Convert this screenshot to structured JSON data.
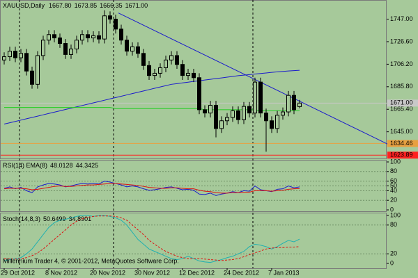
{
  "chart_data": [
    {
      "type": "candlestick",
      "title": "XAUUSD,Daily",
      "header_labels": [
        "1667.80",
        "1673.85",
        "1666.35",
        "1671.00"
      ],
      "categories": [
        "29 Oct 2012",
        null,
        null,
        null,
        null,
        null,
        null,
        null,
        "8 Nov 2012",
        null,
        null,
        null,
        null,
        null,
        null,
        null,
        "20 Nov 2012",
        null,
        null,
        null,
        null,
        null,
        null,
        null,
        "30 Nov 2012",
        null,
        null,
        null,
        null,
        null,
        null,
        null,
        "12 Dec 2012",
        null,
        null,
        null,
        null,
        null,
        null,
        null,
        "24 Dec 2012",
        null,
        null,
        null,
        null,
        null,
        null,
        null,
        "7 Jan 2013",
        null,
        null,
        null,
        null,
        null
      ],
      "open": [
        1710,
        1713,
        1718,
        1712,
        1716,
        1700,
        1688,
        1714,
        1728,
        1733,
        1730,
        1725,
        1715,
        1720,
        1728,
        1733,
        1730,
        1732,
        1729,
        1750,
        1747,
        1738,
        1728,
        1718,
        1722,
        1716,
        1705,
        1696,
        1698,
        1703,
        1710,
        1714,
        1706,
        1696,
        1698,
        1694,
        1665,
        1662,
        1669,
        1648,
        1655,
        1658,
        1664,
        1656,
        1668,
        1662,
        1690,
        1662,
        1655,
        1648,
        1660,
        1663,
        1678,
        1667.8
      ],
      "high": [
        1717,
        1722,
        1722,
        1720,
        1720,
        1704,
        1718,
        1732,
        1737,
        1737,
        1734,
        1729,
        1724,
        1732,
        1737,
        1737,
        1736,
        1736,
        1755,
        1754,
        1751,
        1742,
        1732,
        1726,
        1726,
        1720,
        1709,
        1702,
        1707,
        1714,
        1718,
        1718,
        1710,
        1702,
        1702,
        1698,
        1669,
        1673,
        1673,
        1659,
        1662,
        1668,
        1668,
        1672,
        1672,
        1694,
        1694,
        1666,
        1659,
        1664,
        1667,
        1682,
        1682,
        1673.85
      ],
      "low": [
        1706,
        1709,
        1708,
        1708,
        1696,
        1684,
        1684,
        1710,
        1724,
        1726,
        1721,
        1711,
        1711,
        1716,
        1724,
        1726,
        1726,
        1725,
        1725,
        1743,
        1734,
        1724,
        1714,
        1714,
        1712,
        1701,
        1692,
        1692,
        1694,
        1699,
        1706,
        1702,
        1692,
        1692,
        1690,
        1661,
        1658,
        1658,
        1640,
        1644,
        1651,
        1654,
        1652,
        1652,
        1658,
        1658,
        1658,
        1627,
        1644,
        1644,
        1656,
        1659,
        1661,
        1666.35
      ],
      "close": [
        1713,
        1718,
        1712,
        1716,
        1700,
        1688,
        1714,
        1728,
        1733,
        1730,
        1725,
        1715,
        1720,
        1728,
        1733,
        1730,
        1732,
        1729,
        1750,
        1747,
        1738,
        1728,
        1718,
        1722,
        1716,
        1705,
        1696,
        1698,
        1703,
        1710,
        1714,
        1706,
        1696,
        1698,
        1694,
        1665,
        1662,
        1669,
        1648,
        1655,
        1658,
        1664,
        1656,
        1668,
        1662,
        1690,
        1662,
        1655,
        1648,
        1660,
        1663,
        1678,
        1665,
        1671
      ],
      "up_color": "#a6c99a",
      "down_color": "#000000",
      "lines": [
        {
          "color": "#1a1acc",
          "values": [
            1652,
            1653.2,
            1654.4,
            1655.6,
            1656.8,
            1658,
            1659.2,
            1660.4,
            1661.6,
            1662.8,
            1664,
            1665.2,
            1666.4,
            1667.6,
            1668.8,
            1670,
            1671.2,
            1672.4,
            1673.6,
            1674.8,
            1676,
            1677.2,
            1678.4,
            1679.6,
            1680.8,
            1682,
            1683.2,
            1684.4,
            1685.6,
            1686.8,
            1688,
            1688.6,
            1689.3,
            1689.9,
            1690.6,
            1691.2,
            1691.9,
            1692.5,
            1693.2,
            1693.8,
            1694.5,
            1695.1,
            1695.8,
            1696.3,
            1696.8,
            1697.3,
            1697.8,
            1698.3,
            1698.8,
            1699.3,
            1699.7,
            1700.1,
            1700.4,
            1700.7
          ]
        },
        {
          "color": "#22cc22",
          "values": [
            1667,
            1667,
            1667,
            1667,
            1667,
            1667,
            1667,
            1667,
            1667,
            1667,
            1667,
            1667,
            1667,
            1667,
            1667,
            1667,
            1667,
            1667,
            1667,
            1667,
            1666,
            1666,
            1666,
            1666,
            1666,
            1666,
            1666,
            1666,
            1666,
            1666,
            1666,
            1666,
            1666,
            1666,
            1666,
            1666,
            1665,
            1665,
            1665,
            1665,
            1665,
            1665,
            1665,
            1665,
            1665,
            1665,
            1664,
            1664,
            1664,
            1664,
            1664,
            1664,
            1664,
            1664
          ]
        }
      ],
      "trendline": {
        "color": "#1a1acc",
        "x": [
          20.5,
          69.25
        ],
        "y": [
          1752.6,
          1632.8
        ]
      },
      "hlines": [
        {
          "value": 1671,
          "label": "1671.00",
          "color": "#c8c8c8"
        },
        {
          "value": 1634.46,
          "label": "1634.46",
          "color": "#e8a040"
        },
        {
          "value": 1623.89,
          "label": "1623.89",
          "color": "#ff2020"
        }
      ],
      "ylim": [
        1621.5,
        1763.7
      ],
      "yticks": [
        {
          "value": 1645,
          "label": "1645.00"
        },
        {
          "value": 1665.4,
          "label": "1665.40"
        },
        {
          "value": 1685.8,
          "label": "1685.80"
        },
        {
          "value": 1706.2,
          "label": "1706.20"
        },
        {
          "value": 1726.6,
          "label": "1726.60"
        },
        {
          "value": 1747,
          "label": "1747.00"
        }
      ]
    },
    {
      "type": "line",
      "title": "RSI(14) EMA(8)",
      "series": [
        {
          "color": "#1a1acc",
          "values": [
            45,
            48,
            44,
            47,
            40,
            36,
            48,
            52,
            55,
            54,
            52,
            48,
            50,
            53,
            55,
            54,
            55,
            54,
            60,
            58,
            55,
            52,
            48,
            50,
            48,
            44,
            41,
            42,
            44,
            47,
            48,
            45,
            42,
            43,
            41,
            33,
            32,
            35,
            30,
            33,
            35,
            38,
            36,
            40,
            39,
            50,
            42,
            40,
            38,
            43,
            44,
            50,
            46,
            48.0128
          ]
        },
        {
          "color": "#dd1111",
          "values": [
            44,
            45,
            45,
            45,
            44,
            42,
            43,
            45,
            47,
            49,
            50,
            49,
            49,
            50,
            51,
            52,
            52,
            53,
            54,
            55,
            55,
            54,
            53,
            52,
            51,
            49,
            47,
            46,
            45,
            45,
            46,
            46,
            45,
            44,
            44,
            41,
            39,
            38,
            36,
            35,
            35,
            36,
            36,
            37,
            37,
            40,
            40,
            40,
            39,
            40,
            41,
            43,
            44,
            44.3425
          ]
        }
      ],
      "ylim": [
        0,
        100
      ],
      "yticks": [
        0,
        20,
        40,
        50,
        60,
        80,
        100
      ],
      "grid": true
    },
    {
      "type": "line",
      "title": "Stoch(14,8,3)",
      "annotation": "Millennium Trader 4, © 2001-2012, MetaQuotes Software Corp.",
      "series": [
        {
          "color": "#20b0b0",
          "values": [
            5,
            8,
            10,
            12,
            20,
            30,
            45,
            60,
            75,
            85,
            90,
            92,
            95,
            98,
            100,
            100,
            98,
            100,
            100,
            98,
            95,
            90,
            80,
            65,
            50,
            40,
            30,
            25,
            20,
            15,
            10,
            8,
            10,
            15,
            10,
            5,
            3,
            2,
            5,
            8,
            12,
            15,
            20,
            25,
            35,
            40,
            38,
            35,
            30,
            35,
            42,
            48,
            45,
            50.6499
          ]
        },
        {
          "color": "#dd1111",
          "dashed": true,
          "values": [
            10,
            9,
            9,
            10,
            12,
            16,
            22,
            30,
            40,
            50,
            60,
            70,
            80,
            88,
            93,
            96,
            98,
            99,
            99,
            99,
            98,
            95,
            90,
            80,
            70,
            60,
            48,
            40,
            32,
            25,
            20,
            15,
            12,
            10,
            10,
            10,
            9,
            8,
            7,
            6,
            7,
            8,
            10,
            14,
            18,
            22,
            26,
            30,
            32,
            33,
            33,
            34,
            34,
            34.8901
          ]
        }
      ],
      "ylim": [
        0,
        100
      ],
      "yticks": [
        0,
        20,
        80,
        100
      ],
      "grid": true
    }
  ]
}
